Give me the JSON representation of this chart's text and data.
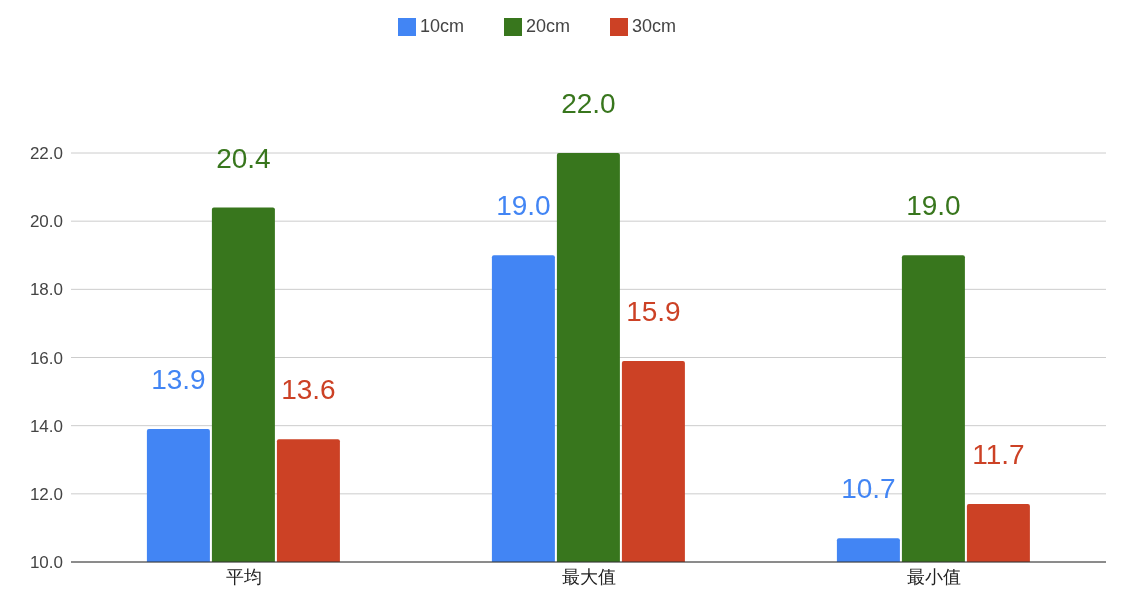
{
  "chart_data": {
    "type": "bar",
    "categories": [
      "平均",
      "最大值",
      "最小值"
    ],
    "series": [
      {
        "name": "10cm",
        "color": "#4285f4",
        "values": [
          13.9,
          19.0,
          10.7
        ],
        "value_labels": [
          "13.9",
          "19.0",
          "10.7"
        ]
      },
      {
        "name": "20cm",
        "color": "#38761d",
        "values": [
          20.4,
          22.0,
          19.0
        ],
        "value_labels": [
          "20.4",
          "22.0",
          "19.0"
        ]
      },
      {
        "name": "30cm",
        "color": "#cc4125",
        "values": [
          13.6,
          15.9,
          11.7
        ],
        "value_labels": [
          "13.6",
          "15.9",
          "11.7"
        ]
      }
    ],
    "ylim": [
      10,
      22
    ],
    "yticks": [
      {
        "value": 10,
        "label": "10.0"
      },
      {
        "value": 12,
        "label": "12.0"
      },
      {
        "value": 14,
        "label": "14.0"
      },
      {
        "value": 16,
        "label": "16.0"
      },
      {
        "value": 18,
        "label": "18.0"
      },
      {
        "value": 20,
        "label": "20.0"
      },
      {
        "value": 22,
        "label": "22.0"
      }
    ],
    "grid": "y",
    "legend": "top"
  }
}
